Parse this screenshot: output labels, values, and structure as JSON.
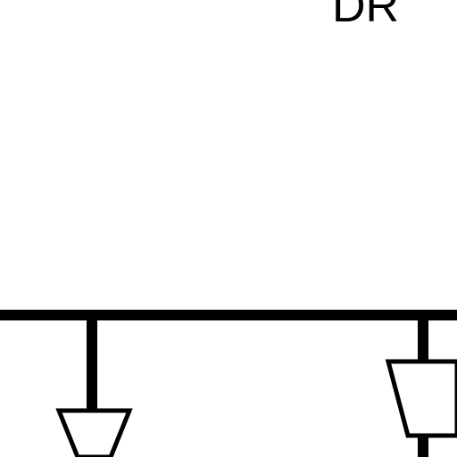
{
  "diagram": {
    "top_label": "DR",
    "bus_line": "horizontal bus",
    "line_color": "#000000",
    "background_color": "#ffffff"
  }
}
